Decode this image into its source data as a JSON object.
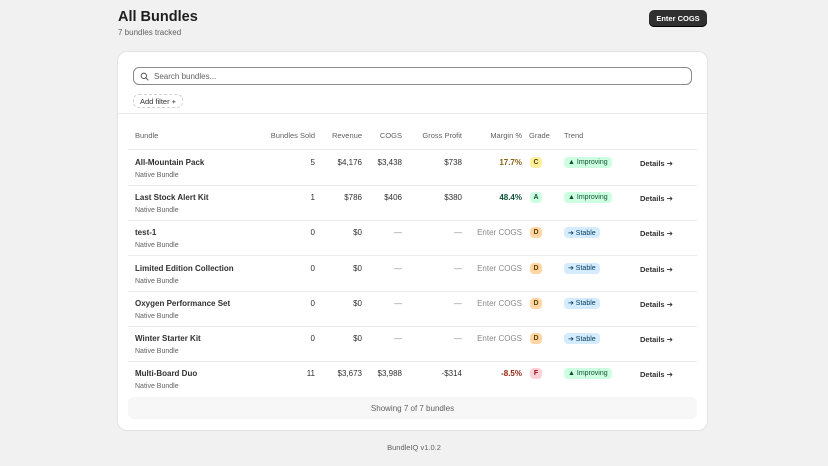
{
  "header": {
    "title": "All Bundles",
    "subtitle": "7 bundles tracked",
    "enter_cogs_label": "Enter COGS"
  },
  "search": {
    "placeholder": "Search bundles..."
  },
  "filter": {
    "add_label": "Add filter +"
  },
  "table": {
    "columns": {
      "bundle": "Bundle",
      "sold": "Bundles Sold",
      "revenue": "Revenue",
      "cogs": "COGS",
      "gross_profit": "Gross Profit",
      "margin": "Margin %",
      "grade": "Grade",
      "trend": "Trend"
    },
    "rows": [
      {
        "name": "All-Mountain Pack",
        "type": "Native Bundle",
        "sold": "5",
        "revenue": "$4,176",
        "cogs": "$3,438",
        "gross_profit": "$738",
        "margin": "17.7%",
        "margin_color": "#8a6116",
        "grade": "C",
        "trend": "▲ Improving",
        "trend_kind": "improving",
        "details": "Details ➔"
      },
      {
        "name": "Last Stock Alert Kit",
        "type": "Native Bundle",
        "sold": "1",
        "revenue": "$786",
        "cogs": "$406",
        "gross_profit": "$380",
        "margin": "48.4%",
        "margin_color": "#0c5132",
        "grade": "A",
        "trend": "▲ Improving",
        "trend_kind": "improving",
        "details": "Details ➔"
      },
      {
        "name": "test-1",
        "type": "Native Bundle",
        "sold": "0",
        "revenue": "$0",
        "cogs": "—",
        "gross_profit": "—",
        "margin": "Enter COGS",
        "margin_color": "",
        "grade": "D",
        "trend": "➔ Stable",
        "trend_kind": "stable",
        "details": "Details ➔"
      },
      {
        "name": "Limited Edition Collection",
        "type": "Native Bundle",
        "sold": "0",
        "revenue": "$0",
        "cogs": "—",
        "gross_profit": "—",
        "margin": "Enter COGS",
        "margin_color": "",
        "grade": "D",
        "trend": "➔ Stable",
        "trend_kind": "stable",
        "details": "Details ➔"
      },
      {
        "name": "Oxygen Performance Set",
        "type": "Native Bundle",
        "sold": "0",
        "revenue": "$0",
        "cogs": "—",
        "gross_profit": "—",
        "margin": "Enter COGS",
        "margin_color": "",
        "grade": "D",
        "trend": "➔ Stable",
        "trend_kind": "stable",
        "details": "Details ➔"
      },
      {
        "name": "Winter Starter Kit",
        "type": "Native Bundle",
        "sold": "0",
        "revenue": "$0",
        "cogs": "—",
        "gross_profit": "—",
        "margin": "Enter COGS",
        "margin_color": "",
        "grade": "D",
        "trend": "➔ Stable",
        "trend_kind": "stable",
        "details": "Details ➔"
      },
      {
        "name": "Multi-Board Duo",
        "type": "Native Bundle",
        "sold": "11",
        "revenue": "$3,673",
        "cogs": "$3,988",
        "gross_profit": "-$314",
        "margin": "-8.5%",
        "margin_color": "#8e1f0b",
        "grade": "F",
        "trend": "▲ Improving",
        "trend_kind": "improving",
        "details": "Details ➔"
      }
    ],
    "footer": "Showing 7 of 7 bundles"
  },
  "colors": {
    "grade": {
      "A": {
        "bg": "#cdfee1",
        "fg": "#0c5132"
      },
      "C": {
        "bg": "#ffef9d",
        "fg": "#4f4700"
      },
      "D": {
        "bg": "#ffd6a4",
        "fg": "#5e4200"
      },
      "F": {
        "bg": "#fed1d7",
        "fg": "#8e0b21"
      }
    },
    "trend": {
      "improving": {
        "bg": "#cdfee1",
        "fg": "#0c5132"
      },
      "stable": {
        "bg": "#d5ebff",
        "fg": "#003a5a"
      }
    }
  },
  "app_version": "BundleIQ v1.0.2"
}
